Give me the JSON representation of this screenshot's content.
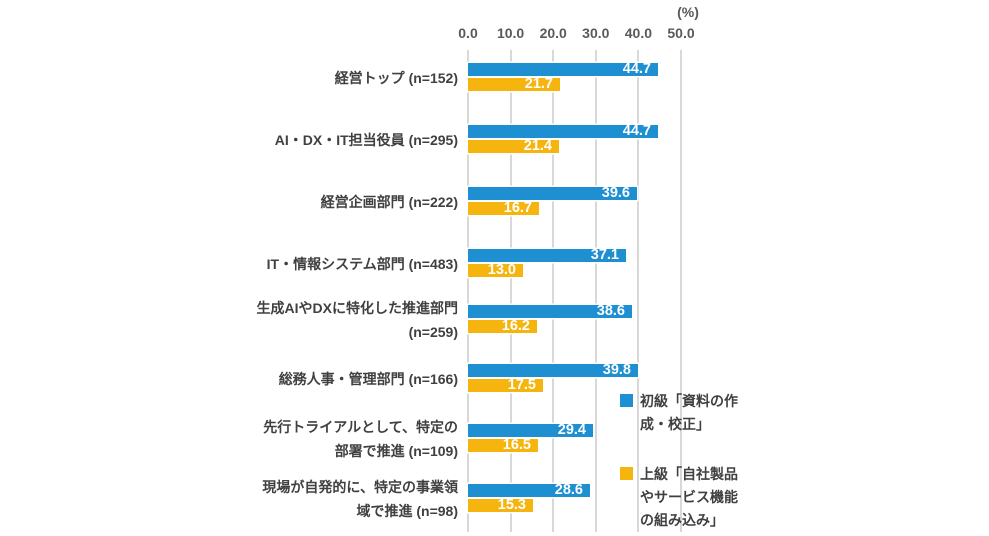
{
  "chart_data": {
    "type": "bar",
    "orientation": "horizontal",
    "unit_label": "(%)",
    "xlim": [
      0,
      50
    ],
    "x_ticks": [
      "0.0",
      "10.0",
      "20.0",
      "30.0",
      "40.0",
      "50.0"
    ],
    "grid": true,
    "legend_position": "right-overlapping-plot",
    "categories": [
      {
        "lines": [
          "経営トップ (n=152)"
        ]
      },
      {
        "lines": [
          "AI・DX・IT担当役員 (n=295)"
        ]
      },
      {
        "lines": [
          "経営企画部門 (n=222)"
        ]
      },
      {
        "lines": [
          "IT・情報システム部門 (n=483)"
        ]
      },
      {
        "lines": [
          "生成AIやDXに特化した推進部門",
          "(n=259)"
        ]
      },
      {
        "lines": [
          "総務人事・管理部門 (n=166)"
        ]
      },
      {
        "lines": [
          "先行トライアルとして、特定の",
          "部署で推進 (n=109)"
        ]
      },
      {
        "lines": [
          "現場が自発的に、特定の事業領",
          "域で推進 (n=98)"
        ]
      }
    ],
    "series": [
      {
        "name": "初級「資料の作成・校正」",
        "legend_lines": [
          "初級「資料の作",
          "成・校正」"
        ],
        "color": "#1E8FD0",
        "values": [
          44.7,
          44.7,
          39.6,
          37.1,
          38.6,
          39.8,
          29.4,
          28.6
        ],
        "value_labels": [
          "44.7",
          "44.7",
          "39.6",
          "37.1",
          "38.6",
          "39.8",
          "29.4",
          "28.6"
        ]
      },
      {
        "name": "上級「自社製品やサービス機能の組み込み」",
        "legend_lines": [
          "上級「自社製品",
          "やサービス機能",
          "の組み込み」"
        ],
        "color": "#F5B40E",
        "values": [
          21.7,
          21.4,
          16.7,
          13.0,
          16.2,
          17.5,
          16.5,
          15.3
        ],
        "value_labels": [
          "21.7",
          "21.4",
          "16.7",
          "13.0",
          "16.2",
          "17.5",
          "16.5",
          "15.3"
        ]
      }
    ],
    "colors": {
      "grid": "#D8D8D8",
      "axis_text": "#595959",
      "category_text": "#404040",
      "value_text": "#FFFFFF",
      "background": "#FFFFFF"
    }
  }
}
